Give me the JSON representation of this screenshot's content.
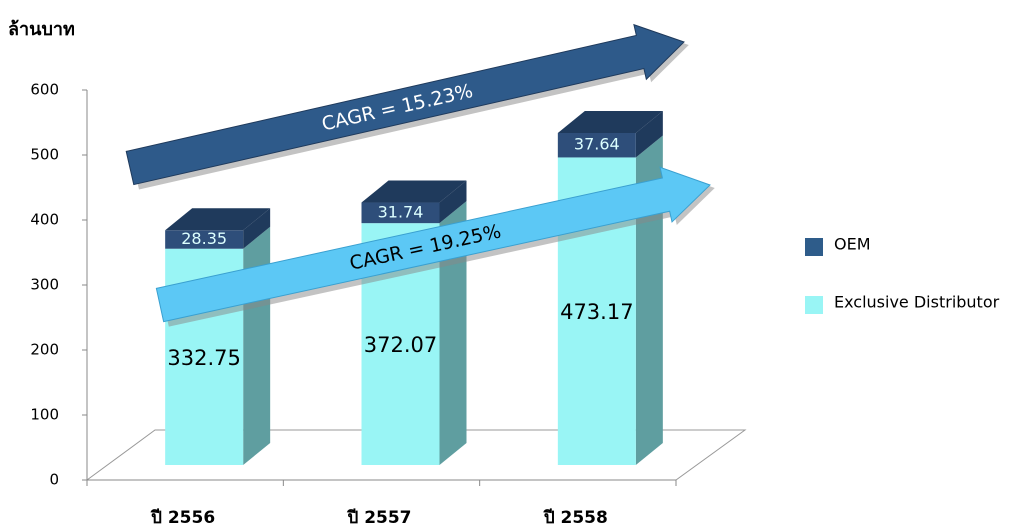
{
  "chart_data": {
    "type": "bar",
    "stacked": true,
    "y_label": "ล้านบาท",
    "categories": [
      "ปี 2556",
      "ปี 2557",
      "ปี 2558"
    ],
    "series": [
      {
        "name": "Exclusive Distributor",
        "color": "#99f5f5",
        "values": [
          332.75,
          372.07,
          473.17
        ]
      },
      {
        "name": "OEM",
        "color": "#2e4e7a",
        "values": [
          28.35,
          31.74,
          37.64
        ]
      }
    ],
    "ylim": [
      0,
      600
    ],
    "yticks": [
      0,
      100,
      200,
      300,
      400,
      500,
      600
    ],
    "annotations": [
      "CAGR = 15.23%",
      "CAGR = 19.25%"
    ]
  }
}
